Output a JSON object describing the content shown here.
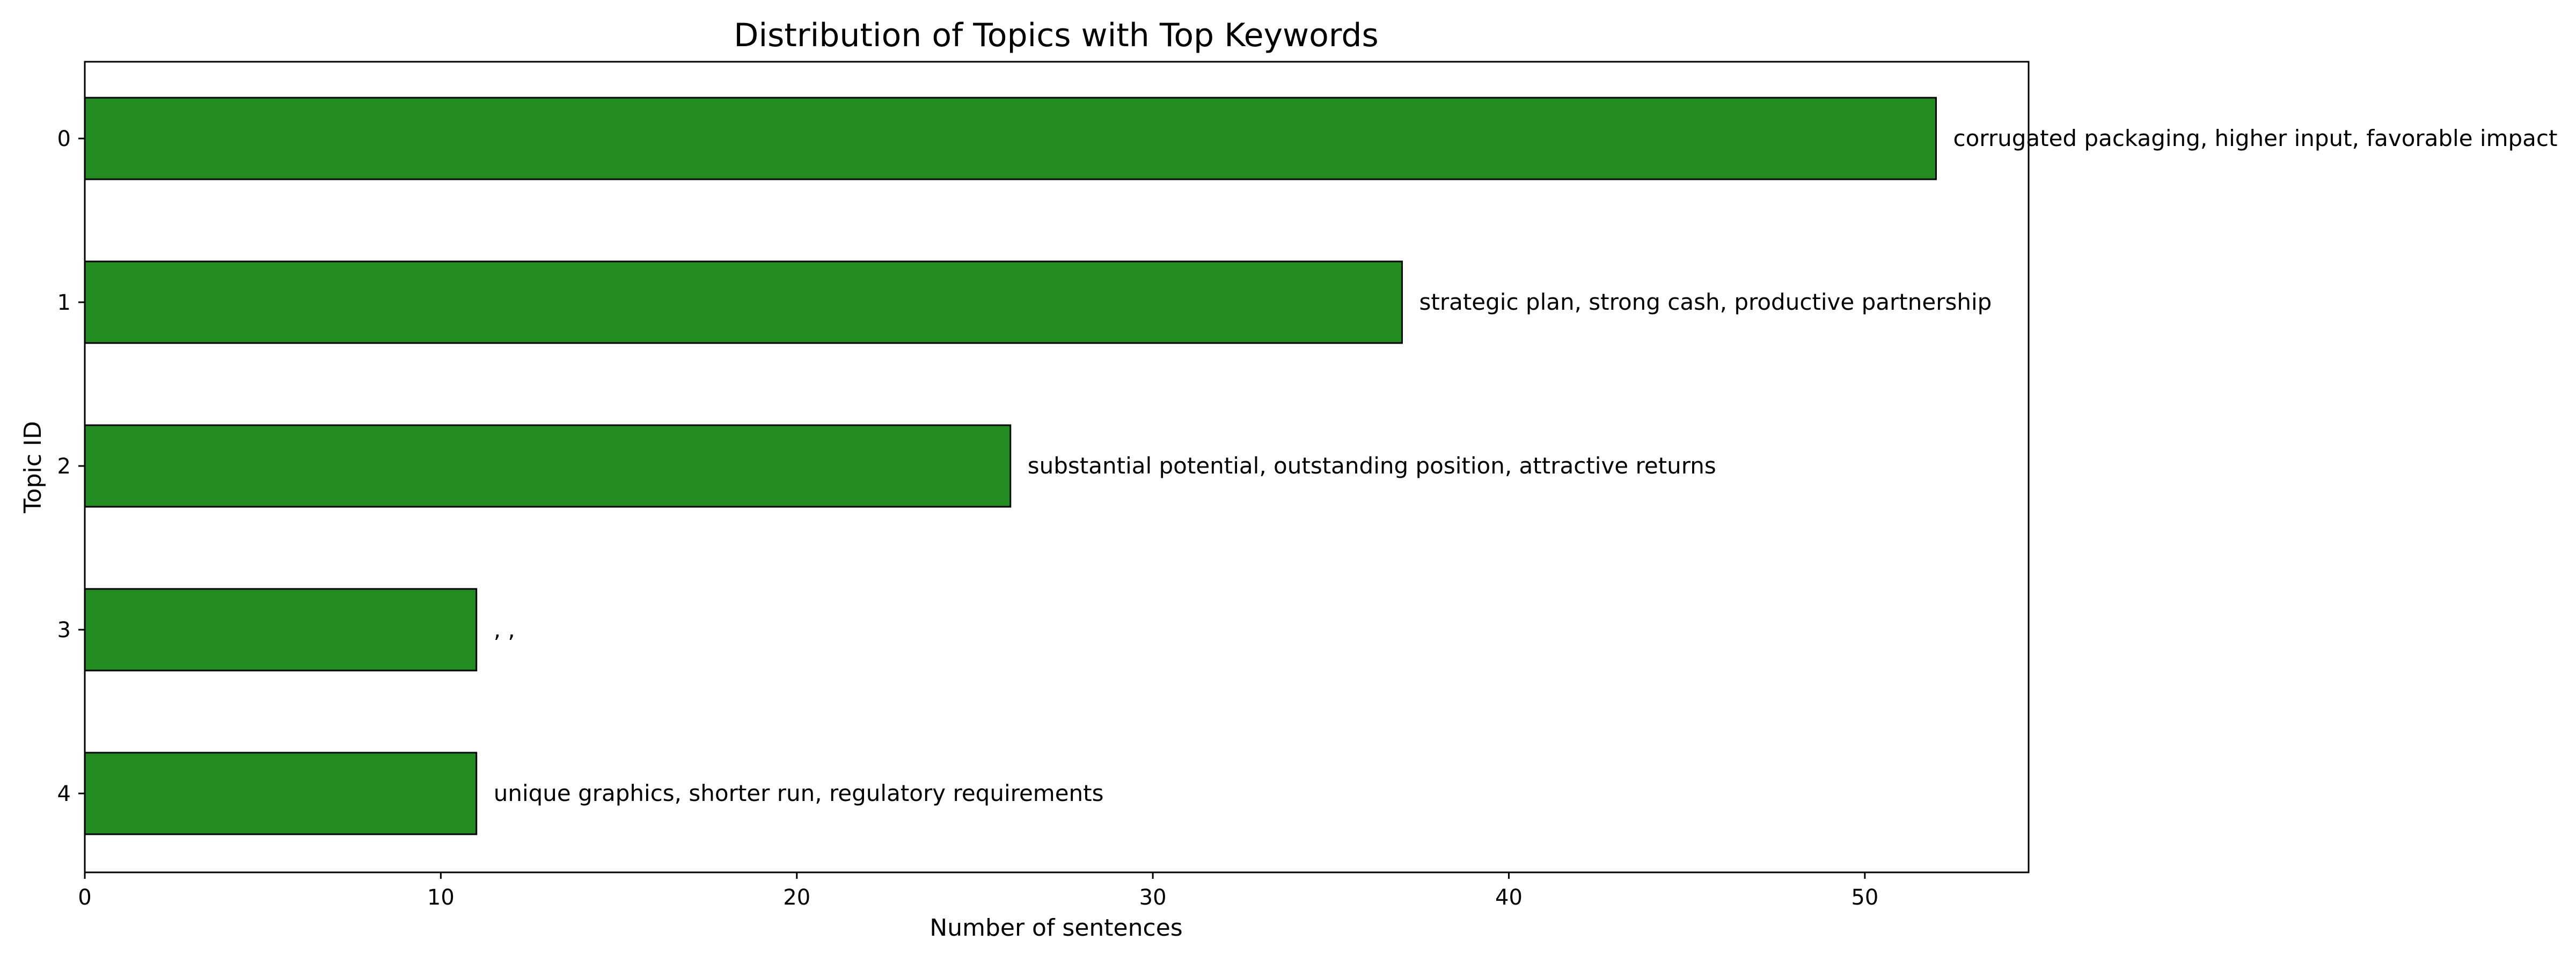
{
  "chart_data": {
    "type": "bar",
    "orientation": "horizontal",
    "title": "Distribution of Topics with Top Keywords",
    "xlabel": "Number of sentences",
    "ylabel": "Topic ID",
    "categories": [
      "0",
      "1",
      "2",
      "3",
      "4"
    ],
    "values": [
      52,
      37,
      26,
      11,
      11
    ],
    "labels": [
      "corrugated packaging, higher input, favorable impact",
      "strategic plan, strong cash, productive partnership",
      "substantial potential, outstanding position, attractive returns",
      ", ,",
      "unique graphics, shorter run, regulatory requirements"
    ],
    "xticks": [
      "0",
      "10",
      "20",
      "30",
      "40",
      "50"
    ],
    "xlim": [
      0,
      54.6
    ],
    "bar_color": "#228b22",
    "edge_color": "#000000",
    "grid": false,
    "legend": false
  }
}
